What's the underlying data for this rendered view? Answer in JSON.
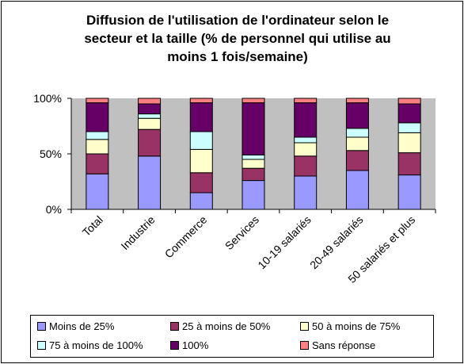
{
  "chart_data": {
    "type": "bar",
    "stacked": true,
    "title": "Diffusion de l'utilisation de l'ordinateur selon le\nsecteur et la taille (% de personnel qui utilise au\nmoins 1 fois/semaine)",
    "categories": [
      "Total",
      "Industrie",
      "Commerce",
      "Services",
      "10-19 salariés",
      "20-49 salariés",
      "50 salariés et plus"
    ],
    "y_ticks": [
      "0%",
      "50%",
      "100%"
    ],
    "ylim": [
      0,
      100
    ],
    "grid": false,
    "legend_position": "bottom",
    "plot_background": "#c0c0c0",
    "series": [
      {
        "name": "Moins de 25%",
        "color": "#9999ff",
        "values": [
          32,
          48,
          15,
          26,
          30,
          35,
          31
        ]
      },
      {
        "name": "25 à moins de 50%",
        "color": "#993366",
        "values": [
          18,
          24,
          18,
          11,
          18,
          18,
          20
        ]
      },
      {
        "name": "50 à moins de 75%",
        "color": "#ffffcc",
        "values": [
          13,
          10,
          21,
          8,
          12,
          12,
          18
        ]
      },
      {
        "name": "75 à moins de 100%",
        "color": "#ccffff",
        "values": [
          7,
          4,
          16,
          4,
          5,
          8,
          9
        ]
      },
      {
        "name": "100%",
        "color": "#660066",
        "values": [
          26,
          9,
          26,
          47,
          31,
          23,
          17
        ]
      },
      {
        "name": "Sans réponse",
        "color": "#ff8080",
        "values": [
          4,
          5,
          4,
          4,
          4,
          4,
          5
        ]
      }
    ]
  }
}
